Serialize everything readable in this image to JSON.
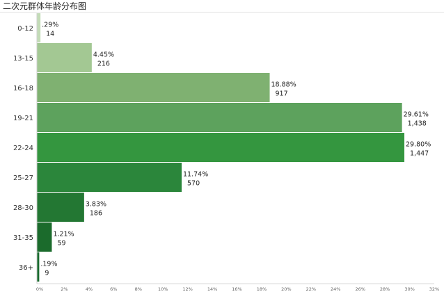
{
  "chart_data": {
    "type": "bar",
    "orientation": "horizontal",
    "title": "二次元群体年龄分布图",
    "categories": [
      "0-12",
      "13-15",
      "16-18",
      "19-21",
      "22-24",
      "25-27",
      "28-30",
      "31-35",
      "36+"
    ],
    "values": [
      0.29,
      4.45,
      18.88,
      29.61,
      29.8,
      11.74,
      3.83,
      1.21,
      0.19
    ],
    "percent_labels": [
      ".29%",
      "4.45%",
      "18.88%",
      "29.61%",
      "29.80%",
      "11.74%",
      "3.83%",
      "1.21%",
      ".19%"
    ],
    "counts": [
      "14",
      "216",
      "917",
      "1,438",
      "1,447",
      "570",
      "186",
      "59",
      "9"
    ],
    "colors": [
      "#c3dcb7",
      "#a3c893",
      "#7fb171",
      "#5da25d",
      "#34963f",
      "#2b863b",
      "#237733",
      "#1b6b2c",
      "#196b2e"
    ],
    "xlim": [
      0,
      32
    ],
    "xticks": [
      "0%",
      "2%",
      "4%",
      "6%",
      "8%",
      "10%",
      "12%",
      "14%",
      "16%",
      "18%",
      "20%",
      "22%",
      "24%",
      "26%",
      "28%",
      "30%",
      "32%"
    ],
    "grid": false,
    "legend": "none"
  }
}
